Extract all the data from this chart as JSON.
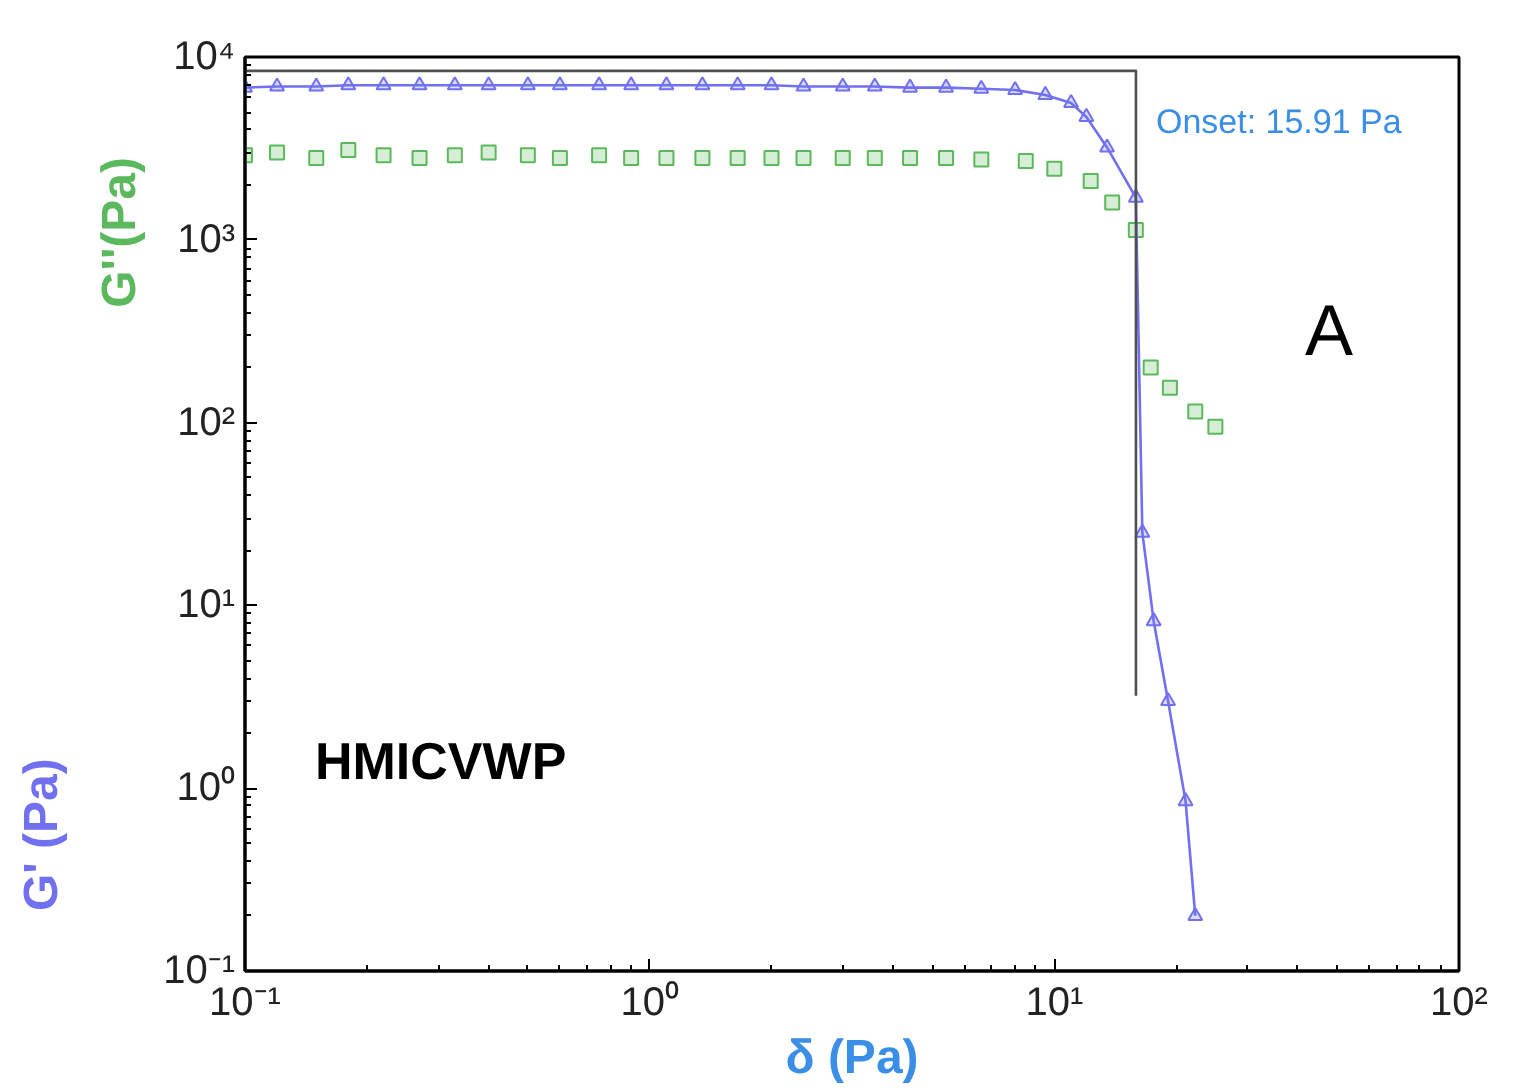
{
  "chart_data": {
    "type": "scatter",
    "xlabel": "δ (Pa)",
    "log": "xy",
    "grid": false,
    "xlim": [
      0.1,
      100
    ],
    "ylim": [
      0.1,
      10000
    ],
    "xticks": [
      {
        "value": 0.1,
        "label": "10⁻¹"
      },
      {
        "value": 1,
        "label": "10⁰"
      },
      {
        "value": 10,
        "label": "10¹"
      },
      {
        "value": 100,
        "label": "10²"
      }
    ],
    "yticks": [
      {
        "value": 0.1,
        "label": "10⁻¹"
      },
      {
        "value": 1,
        "label": "10⁰"
      },
      {
        "value": 10,
        "label": "10¹"
      },
      {
        "value": 100,
        "label": "10²"
      },
      {
        "value": 1000,
        "label": "10³"
      },
      {
        "value": 10000,
        "label": "10⁴"
      }
    ],
    "series": [
      {
        "name": "G''(Pa)",
        "color": "#5cb85c",
        "marker": "square",
        "x": [
          0.1,
          0.12,
          0.15,
          0.18,
          0.22,
          0.27,
          0.33,
          0.4,
          0.5,
          0.6,
          0.75,
          0.9,
          1.1,
          1.35,
          1.65,
          2,
          2.4,
          3,
          3.6,
          4.4,
          5.4,
          6.6,
          8.5,
          10,
          12.3,
          13.9,
          15.9,
          17.3,
          19.3,
          22.3,
          25
        ],
        "values": [
          2900,
          3000,
          2800,
          3100,
          2900,
          2800,
          2900,
          3000,
          2900,
          2800,
          2900,
          2800,
          2800,
          2800,
          2800,
          2800,
          2800,
          2800,
          2800,
          2800,
          2800,
          2750,
          2700,
          2450,
          2100,
          1600,
          1130,
          200,
          155,
          115,
          95
        ]
      },
      {
        "name": "G' (Pa)",
        "color": "#7070f0",
        "marker": "triangle",
        "type": "line",
        "x": [
          0.1,
          0.12,
          0.15,
          0.18,
          0.22,
          0.27,
          0.33,
          0.4,
          0.5,
          0.6,
          0.75,
          0.9,
          1.1,
          1.35,
          1.65,
          2,
          2.4,
          3,
          3.6,
          4.4,
          5.4,
          6.6,
          8,
          9.5,
          11,
          12,
          13.5,
          15.9,
          16.5,
          17.6,
          19.1,
          21.1,
          22.3
        ],
        "values": [
          6800,
          6900,
          6900,
          7000,
          7000,
          7000,
          7000,
          7000,
          7000,
          7000,
          7000,
          7000,
          7000,
          7000,
          7000,
          7000,
          6900,
          6900,
          6900,
          6800,
          6800,
          6700,
          6600,
          6200,
          5600,
          4700,
          3200,
          1700,
          25,
          8.2,
          3.0,
          0.85,
          0.2
        ]
      },
      {
        "color": "#505050",
        "marker": "none",
        "type": "line",
        "x": [
          0.1,
          15.91,
          15.91
        ],
        "values": [
          8400,
          8400,
          3.2
        ]
      }
    ],
    "annotations": [
      {
        "text": "Onset: 15.91 Pa",
        "x": 15.91,
        "y": 8400
      },
      "A",
      "HMICVWP"
    ]
  }
}
